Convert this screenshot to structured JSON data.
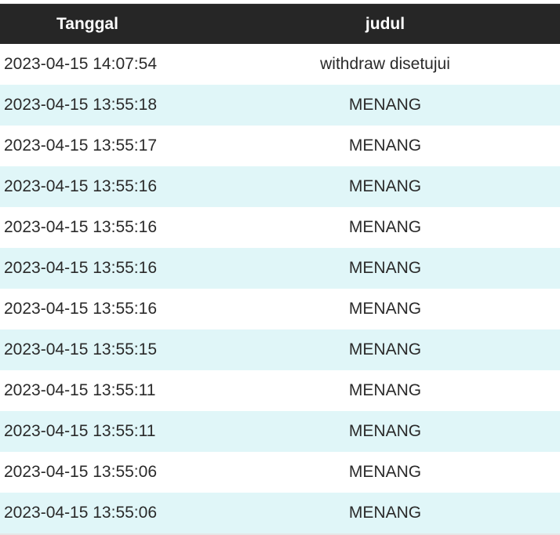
{
  "table": {
    "headers": [
      "Tanggal",
      "judul"
    ],
    "rows": [
      {
        "tanggal": "2023-04-15 14:07:54",
        "judul": "withdraw disetujui"
      },
      {
        "tanggal": "2023-04-15 13:55:18",
        "judul": "MENANG"
      },
      {
        "tanggal": "2023-04-15 13:55:17",
        "judul": "MENANG"
      },
      {
        "tanggal": "2023-04-15 13:55:16",
        "judul": "MENANG"
      },
      {
        "tanggal": "2023-04-15 13:55:16",
        "judul": "MENANG"
      },
      {
        "tanggal": "2023-04-15 13:55:16",
        "judul": "MENANG"
      },
      {
        "tanggal": "2023-04-15 13:55:16",
        "judul": "MENANG"
      },
      {
        "tanggal": "2023-04-15 13:55:15",
        "judul": "MENANG"
      },
      {
        "tanggal": "2023-04-15 13:55:11",
        "judul": "MENANG"
      },
      {
        "tanggal": "2023-04-15 13:55:11",
        "judul": "MENANG"
      },
      {
        "tanggal": "2023-04-15 13:55:06",
        "judul": "MENANG"
      },
      {
        "tanggal": "2023-04-15 13:55:06",
        "judul": "MENANG"
      }
    ]
  },
  "colors": {
    "header_bg": "#262626",
    "alt_row_bg": "#e0f6f8"
  }
}
